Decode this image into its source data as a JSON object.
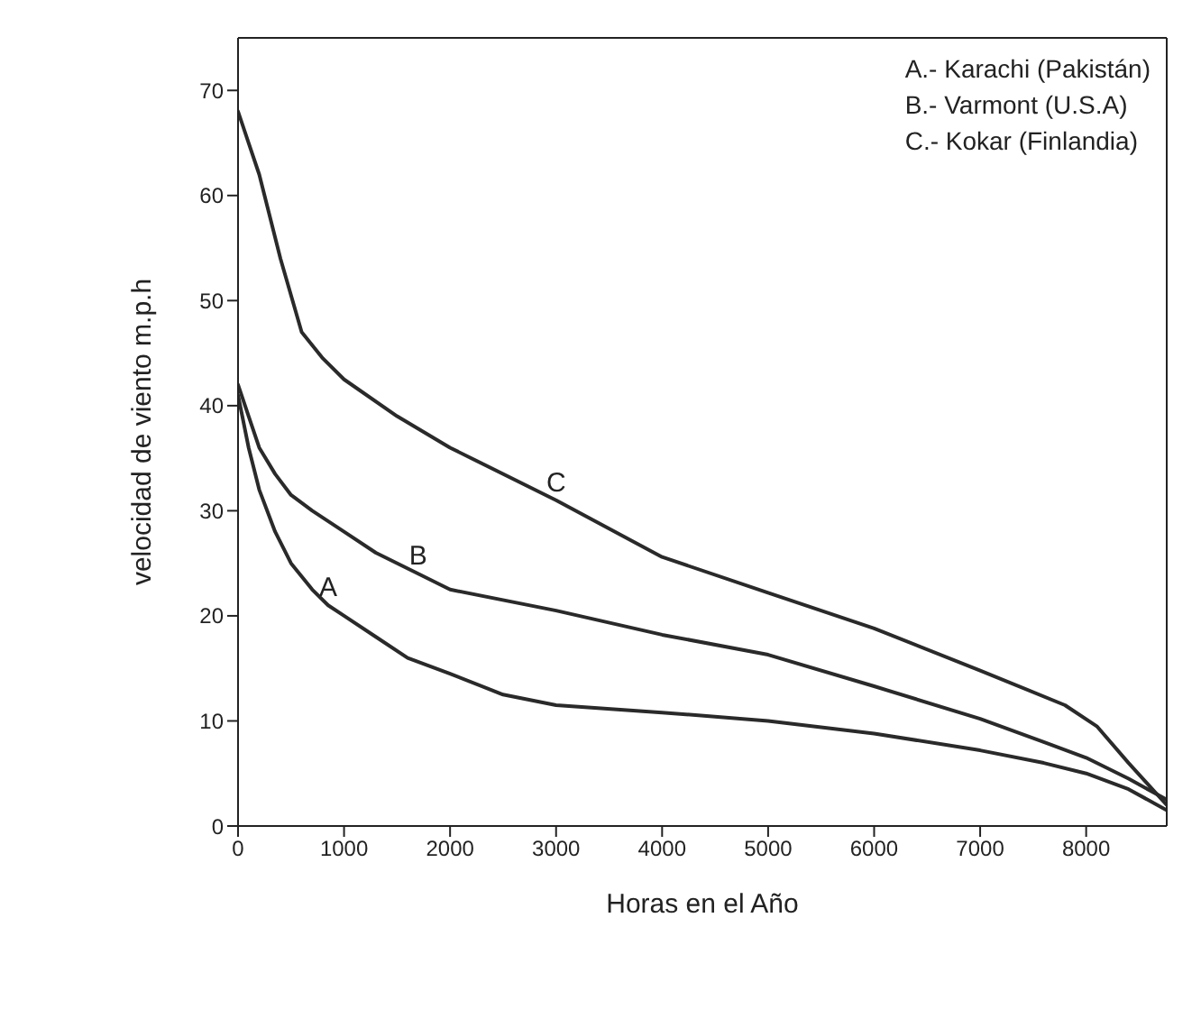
{
  "chart_data": {
    "type": "line",
    "xlabel": "Horas en el Año",
    "ylabel": "velocidad de viento   m.p.h",
    "xlim": [
      0,
      8760
    ],
    "xticks": [
      0,
      1000,
      2000,
      3000,
      4000,
      5000,
      6000,
      7000,
      8000
    ],
    "ylim": [
      0,
      75
    ],
    "yticks": [
      0,
      10,
      20,
      30,
      40,
      50,
      60,
      70
    ],
    "marker": "none",
    "line_style": "solid",
    "series": [
      {
        "color": "#2a2a2a",
        "x": [
          0,
          100,
          200,
          350,
          500,
          700,
          850,
          1000,
          1300,
          1600,
          2000,
          2500,
          3000,
          4000,
          5000,
          6000,
          7000,
          7600,
          8000,
          8400,
          8760
        ],
        "values": [
          41,
          36,
          32,
          28,
          25,
          22.5,
          21,
          20,
          18,
          16,
          14.5,
          12.5,
          11.5,
          10.8,
          10,
          8.8,
          7.2,
          6,
          5,
          3.5,
          1.5
        ]
      },
      {
        "color": "#2a2a2a",
        "x": [
          0,
          100,
          200,
          350,
          500,
          700,
          1000,
          1300,
          1700,
          2000,
          3000,
          4000,
          5000,
          6000,
          7000,
          7600,
          8000,
          8400,
          8760
        ],
        "values": [
          42,
          39,
          36,
          33.5,
          31.5,
          30,
          28,
          26,
          24,
          22.5,
          20.5,
          18.2,
          16.3,
          13.3,
          10.2,
          8,
          6.5,
          4.5,
          2.5
        ]
      },
      {
        "color": "#2a2a2a",
        "x": [
          0,
          100,
          200,
          400,
          600,
          800,
          1000,
          1500,
          2000,
          3000,
          4000,
          5000,
          6000,
          7000,
          7800,
          8100,
          8400,
          8760
        ],
        "values": [
          68,
          65,
          62,
          54,
          47,
          44.5,
          42.5,
          39,
          36,
          31,
          25.6,
          22.2,
          18.8,
          14.8,
          11.5,
          9.5,
          6,
          2
        ]
      }
    ],
    "annotations": [
      "A.- Karachi (Pakistán)",
      "B.- Varmont (U.S.A)",
      "C.- Kokar (Finlandia)",
      {
        "text": "A",
        "x": 850,
        "y": 21
      },
      {
        "text": "B",
        "x": 1700,
        "y": 24
      },
      {
        "text": "C",
        "x": 3000,
        "y": 31
      }
    ]
  }
}
